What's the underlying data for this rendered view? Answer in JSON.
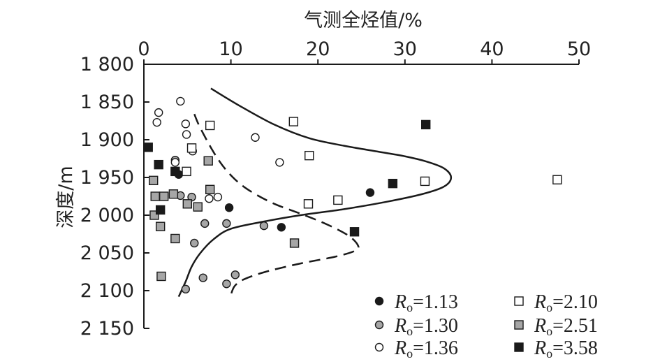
{
  "chart_data": {
    "type": "scatter",
    "title": "",
    "xlabel": "气测全烃值/%",
    "ylabel": "深度/m",
    "x_axis_position": "top",
    "xlim": [
      0,
      50
    ],
    "ylim": [
      1800,
      2150
    ],
    "y_inverted": true,
    "x_ticks": [
      0,
      10,
      20,
      30,
      40,
      50
    ],
    "x_tick_labels": [
      "0",
      "10",
      "20",
      "30",
      "40",
      "50"
    ],
    "y_ticks": [
      1800,
      1850,
      1900,
      1950,
      2000,
      2050,
      2100,
      2150
    ],
    "y_tick_labels": [
      "1 800",
      "1 850",
      "1 900",
      "1 950",
      "2 000",
      "2 050",
      "2 100",
      "2 150"
    ],
    "grid": false,
    "legend_position": "bottom-right",
    "colors": {
      "black": "#1a1a1a",
      "gray": "#a6a6a6",
      "white": "#ffffff",
      "stroke": "#1a1a1a"
    },
    "series": [
      {
        "name": "1.13",
        "marker": "circle",
        "fill": "black",
        "x": [
          4.0,
          9.8,
          15.8,
          26.0
        ],
        "y": [
          1946,
          1990,
          2016,
          1970
        ]
      },
      {
        "name": "1.30",
        "marker": "circle",
        "fill": "gray",
        "x": [
          4.2,
          5.5,
          7.0,
          9.5,
          13.8,
          5.8,
          6.8,
          9.5,
          10.5,
          4.8,
          3.6
        ],
        "y": [
          1974,
          1976,
          2011,
          2011,
          2014,
          2037,
          2083,
          2091,
          2079,
          2098,
          1927
        ]
      },
      {
        "name": "1.36",
        "marker": "circle",
        "fill": "white",
        "x": [
          1.7,
          1.5,
          4.2,
          4.8,
          4.9,
          5.6,
          3.6,
          12.8,
          15.6,
          7.5,
          8.5
        ],
        "y": [
          1864,
          1877,
          1849,
          1879,
          1893,
          1915,
          1930,
          1897,
          1930,
          1978,
          1976
        ]
      },
      {
        "name": "2.10",
        "marker": "square",
        "fill": "white",
        "x": [
          7.6,
          17.2,
          5.5,
          4.9,
          19.0,
          22.3,
          18.9,
          32.3,
          47.5
        ],
        "y": [
          1881,
          1876,
          1911,
          1942,
          1921,
          1980,
          1985,
          1955,
          1953
        ]
      },
      {
        "name": "2.51",
        "marker": "square",
        "fill": "gray",
        "x": [
          1.1,
          1.3,
          2.3,
          3.4,
          5.0,
          6.2,
          7.4,
          7.6,
          1.2,
          1.9,
          3.6,
          2.0,
          17.3
        ],
        "y": [
          1954,
          1975,
          1975,
          1972,
          1985,
          1989,
          1928,
          1966,
          2000,
          2015,
          2031,
          2081,
          2037
        ]
      },
      {
        "name": "3.58",
        "marker": "square",
        "fill": "black",
        "x": [
          0.5,
          1.7,
          3.6,
          1.9,
          28.6,
          32.4,
          24.2
        ],
        "y": [
          1910,
          1933,
          1942,
          1993,
          1958,
          1880,
          2022
        ]
      }
    ],
    "curves": [
      {
        "style": "solid",
        "x": [
          7.7,
          11,
          15,
          19,
          23,
          27,
          30,
          32.5,
          34.5,
          35.3,
          34.5,
          32,
          28,
          23,
          18,
          14,
          10,
          8,
          6.5,
          5.5,
          4.8,
          4.0
        ],
        "y": [
          1832,
          1855,
          1880,
          1898,
          1908,
          1916,
          1922,
          1929,
          1938,
          1950,
          1962,
          1972,
          1982,
          1992,
          2000,
          2008,
          2018,
          2032,
          2050,
          2068,
          2088,
          2108
        ]
      },
      {
        "style": "dashed",
        "x": [
          5.8,
          6.3,
          7.2,
          8.2,
          9.3,
          10.8,
          12.5,
          15,
          18,
          21,
          23.5,
          24.6,
          24.3,
          22,
          18,
          14,
          11.5,
          10.5,
          10.1,
          10.0
        ],
        "y": [
          1866,
          1880,
          1900,
          1920,
          1938,
          1956,
          1970,
          1985,
          1998,
          2012,
          2027,
          2040,
          2047,
          2055,
          2064,
          2075,
          2085,
          2093,
          2102,
          2110
        ]
      }
    ],
    "legend": [
      {
        "marker": "circle",
        "fill": "black",
        "label_var": "R",
        "label_sub": "o",
        "label_value": "=1.13"
      },
      {
        "marker": "circle",
        "fill": "gray",
        "label_var": "R",
        "label_sub": "o",
        "label_value": "=1.30"
      },
      {
        "marker": "circle",
        "fill": "white",
        "label_var": "R",
        "label_sub": "o",
        "label_value": "=1.36"
      },
      {
        "marker": "square",
        "fill": "white",
        "label_var": "R",
        "label_sub": "o",
        "label_value": "=2.10"
      },
      {
        "marker": "square",
        "fill": "gray",
        "label_var": "R",
        "label_sub": "o",
        "label_value": "=2.51"
      },
      {
        "marker": "square",
        "fill": "black",
        "label_var": "R",
        "label_sub": "o",
        "label_value": "=3.58"
      }
    ]
  }
}
